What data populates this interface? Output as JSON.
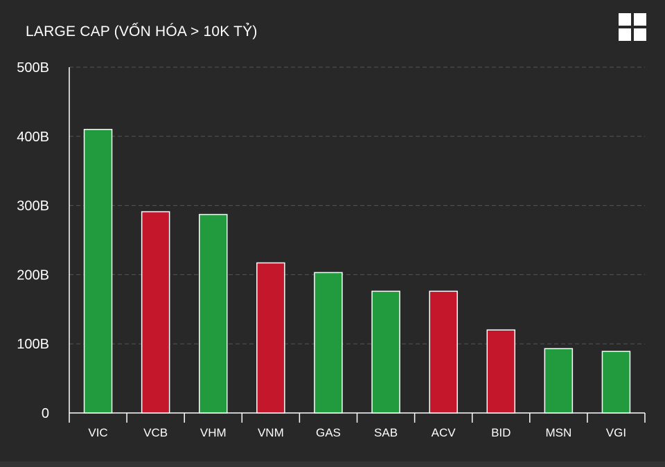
{
  "header": {
    "title": "LARGE CAP (VỐN HÓA > 10K TỶ)",
    "menu_icon": "grid-menu-icon"
  },
  "colors": {
    "background": "#282828",
    "up": "#229a3e",
    "down": "#c4172c",
    "bar_border": "#ffffff",
    "grid": "#555555",
    "text": "#ffffff"
  },
  "chart_data": {
    "type": "bar",
    "title": "LARGE CAP (VỐN HÓA > 10K TỶ)",
    "categories": [
      "VIC",
      "VCB",
      "VHM",
      "VNM",
      "GAS",
      "SAB",
      "ACV",
      "BID",
      "MSN",
      "VGI"
    ],
    "values": [
      410,
      291,
      287,
      217,
      203,
      176,
      176,
      120,
      93,
      89
    ],
    "direction": [
      "up",
      "down",
      "up",
      "down",
      "up",
      "up",
      "down",
      "down",
      "up",
      "up"
    ],
    "unit": "B",
    "ylim": [
      0,
      500
    ],
    "yticks": [
      0,
      100,
      200,
      300,
      400,
      500
    ],
    "ytick_labels": [
      "0",
      "100B",
      "200B",
      "300B",
      "400B",
      "500B"
    ],
    "grid": true,
    "legend": "none"
  }
}
